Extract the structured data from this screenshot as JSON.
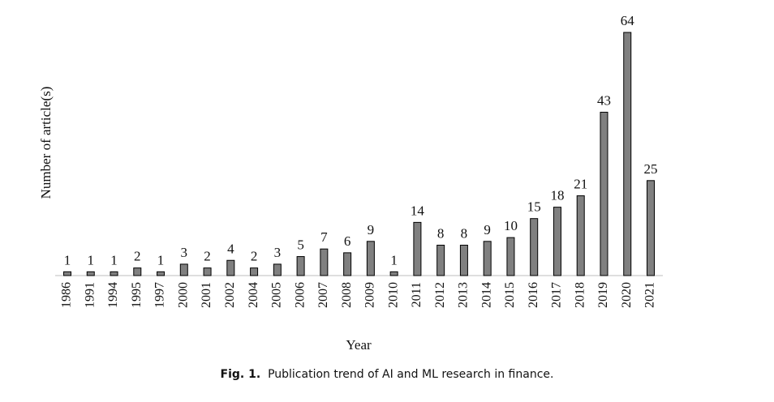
{
  "caption": {
    "label": "Fig. 1.",
    "text": "Publication trend of AI and ML research in finance."
  },
  "chart_data": {
    "type": "bar",
    "title": "",
    "xlabel": "Year",
    "ylabel": "Number of article(s)",
    "categories": [
      "1986",
      "1991",
      "1994",
      "1995",
      "1997",
      "2000",
      "2001",
      "2002",
      "2004",
      "2005",
      "2006",
      "2007",
      "2008",
      "2009",
      "2010",
      "2011",
      "2012",
      "2013",
      "2014",
      "2015",
      "2016",
      "2017",
      "2018",
      "2019",
      "2020",
      "2021"
    ],
    "values": [
      1,
      1,
      1,
      2,
      1,
      3,
      2,
      4,
      2,
      3,
      5,
      7,
      6,
      9,
      1,
      14,
      8,
      8,
      9,
      10,
      15,
      18,
      21,
      43,
      64,
      25
    ],
    "ylim": [
      0,
      64
    ],
    "data_labels": true,
    "grid": false,
    "bar_color": "#808080",
    "bar_edge_color": "#000000"
  }
}
